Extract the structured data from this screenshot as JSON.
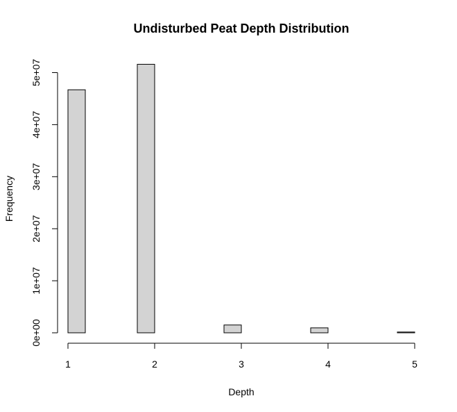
{
  "chart_data": {
    "type": "bar",
    "title": "Undisturbed Peat Depth Distribution",
    "xlabel": "Depth",
    "ylabel": "Frequency",
    "x_ticks": [
      1,
      2,
      3,
      4,
      5
    ],
    "x_tick_labels": [
      "1",
      "2",
      "3",
      "4",
      "5"
    ],
    "y_ticks": [
      0,
      10000000,
      20000000,
      30000000,
      40000000,
      50000000
    ],
    "y_tick_labels": [
      "0e+00",
      "1e+07",
      "2e+07",
      "3e+07",
      "4e+07",
      "5e+07"
    ],
    "xlim": [
      1,
      5
    ],
    "ylim": [
      0,
      50000000
    ],
    "bin_width": 0.2,
    "bins": [
      {
        "start": 1.0,
        "end": 1.2,
        "value": 46700000
      },
      {
        "start": 1.2,
        "end": 1.4,
        "value": 0
      },
      {
        "start": 1.4,
        "end": 1.6,
        "value": 0
      },
      {
        "start": 1.6,
        "end": 1.8,
        "value": 0
      },
      {
        "start": 1.8,
        "end": 2.0,
        "value": 51600000
      },
      {
        "start": 2.0,
        "end": 2.2,
        "value": 0
      },
      {
        "start": 2.2,
        "end": 2.4,
        "value": 0
      },
      {
        "start": 2.4,
        "end": 2.6,
        "value": 0
      },
      {
        "start": 2.6,
        "end": 2.8,
        "value": 0
      },
      {
        "start": 2.8,
        "end": 3.0,
        "value": 1500000
      },
      {
        "start": 3.0,
        "end": 3.2,
        "value": 0
      },
      {
        "start": 3.2,
        "end": 3.4,
        "value": 0
      },
      {
        "start": 3.4,
        "end": 3.6,
        "value": 0
      },
      {
        "start": 3.6,
        "end": 3.8,
        "value": 0
      },
      {
        "start": 3.8,
        "end": 4.0,
        "value": 950000
      },
      {
        "start": 4.0,
        "end": 4.2,
        "value": 0
      },
      {
        "start": 4.2,
        "end": 4.4,
        "value": 0
      },
      {
        "start": 4.4,
        "end": 4.6,
        "value": 0
      },
      {
        "start": 4.6,
        "end": 4.8,
        "value": 0
      },
      {
        "start": 4.8,
        "end": 5.0,
        "value": 150000
      }
    ],
    "bar_fill": "#d3d3d3",
    "bar_stroke": "#000000",
    "grid": false,
    "legend": "none"
  }
}
